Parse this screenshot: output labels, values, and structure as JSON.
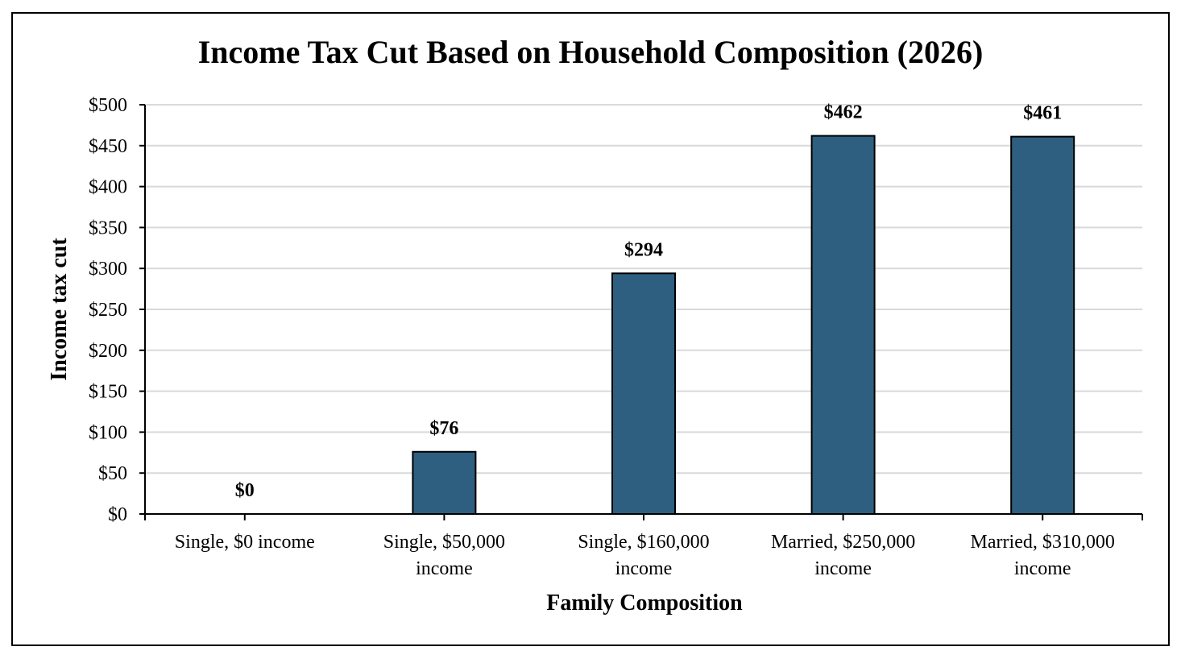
{
  "chart_data": {
    "type": "bar",
    "title": "Income Tax Cut Based on Household Composition (2026)",
    "xlabel": "Family Composition",
    "ylabel": "Income tax cut",
    "categories": [
      [
        "Single, $0 income"
      ],
      [
        "Single, $50,000",
        "income"
      ],
      [
        "Single, $160,000",
        "income"
      ],
      [
        "Married, $250,000",
        "income"
      ],
      [
        "Married, $310,000",
        "income"
      ]
    ],
    "values": [
      0,
      76,
      294,
      462,
      461
    ],
    "data_labels": [
      "$0",
      "$76",
      "$294",
      "$462",
      "$461"
    ],
    "ylim": [
      0,
      500
    ],
    "yticks": [
      0,
      50,
      100,
      150,
      200,
      250,
      300,
      350,
      400,
      450,
      500
    ],
    "ytick_labels": [
      "$0",
      "$50",
      "$100",
      "$150",
      "$200",
      "$250",
      "$300",
      "$350",
      "$400",
      "$450",
      "$500"
    ],
    "grid": true,
    "legend": "none",
    "colors": {
      "bar": "#2e5f80",
      "bar_edge": "#000000",
      "grid": "#d9d9d9",
      "axis": "#000000"
    }
  }
}
